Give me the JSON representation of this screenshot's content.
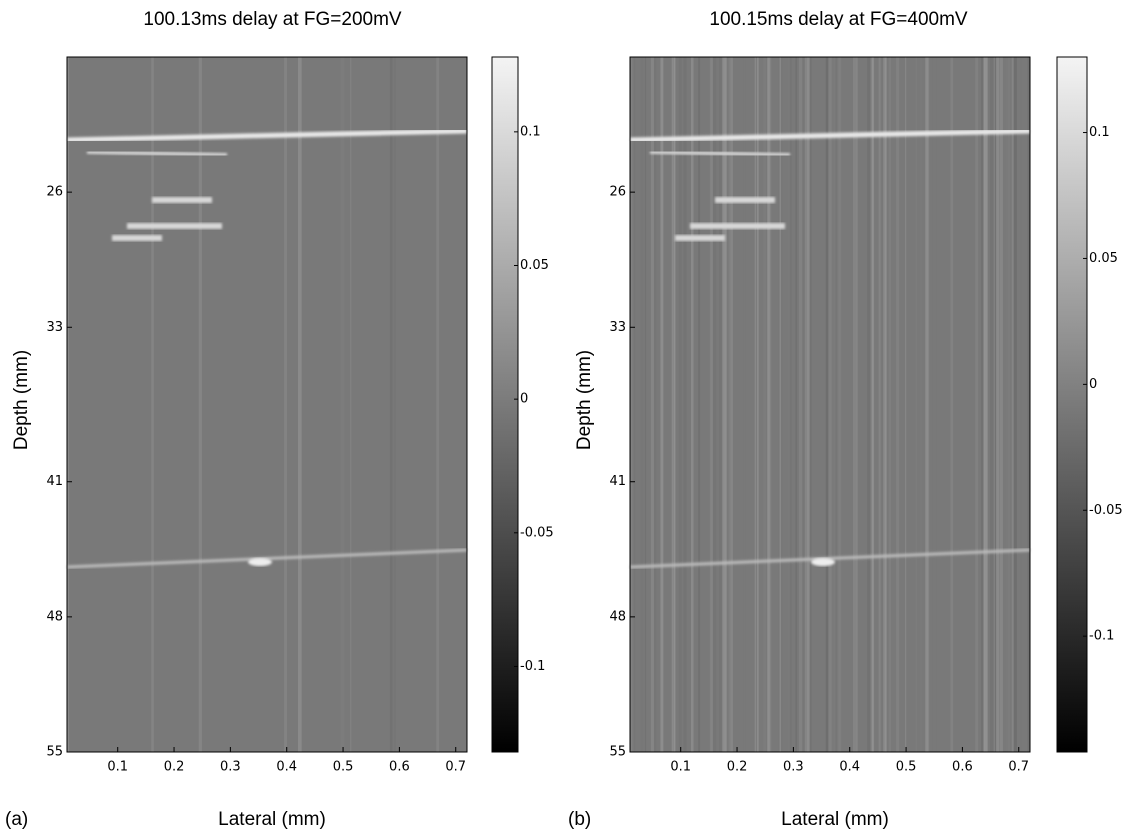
{
  "chart_data": [
    {
      "type": "heatmap",
      "title": "100.13ms delay at FG=200mV",
      "panel_label": "(a)",
      "xlabel": "Lateral (mm)",
      "ylabel": "Depth (mm)",
      "xlim": [
        0.01,
        0.72
      ],
      "xticks": [
        0.1,
        0.2,
        0.3,
        0.4,
        0.5,
        0.6,
        0.7
      ],
      "ylim": [
        19,
        55
      ],
      "yticks": [
        26,
        33,
        41,
        48,
        55
      ],
      "clim": [
        -0.132,
        0.128
      ],
      "cticks": [
        0.1,
        0.05,
        0,
        -0.05,
        -0.1
      ]
    },
    {
      "type": "heatmap",
      "title": "100.15ms delay at FG=400mV",
      "panel_label": "(b)",
      "xlabel": "Lateral (mm)",
      "ylabel": "Depth (mm)",
      "xlim": [
        0.01,
        0.72
      ],
      "xticks": [
        0.1,
        0.2,
        0.3,
        0.4,
        0.5,
        0.6,
        0.7
      ],
      "ylim": [
        19,
        55
      ],
      "yticks": [
        26,
        33,
        41,
        48,
        55
      ],
      "clim": [
        -0.146,
        0.13
      ],
      "cticks": [
        0.1,
        0.05,
        0,
        -0.05,
        -0.1
      ]
    }
  ]
}
